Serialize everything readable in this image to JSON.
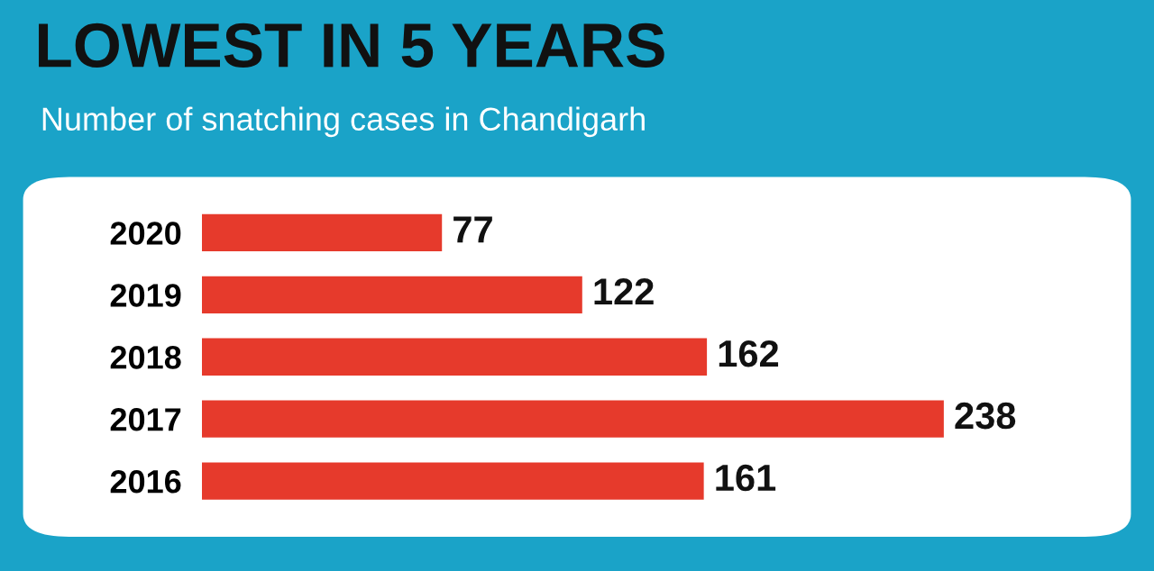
{
  "chart_data": {
    "type": "bar",
    "orientation": "horizontal",
    "title": "LOWEST IN 5 YEARS",
    "subtitle": "Number of snatching cases in Chandigarh",
    "categories": [
      "2020",
      "2019",
      "2018",
      "2017",
      "2016"
    ],
    "values": [
      77,
      122,
      162,
      238,
      161
    ],
    "color": "#e63a2c",
    "data_labels": true,
    "grid": false,
    "legend": false
  }
}
